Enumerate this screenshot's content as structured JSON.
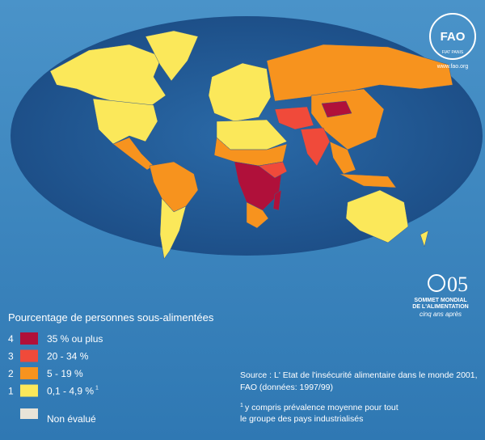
{
  "header": {
    "logo_text": "FAO",
    "logo_motto": "FIAT PANIS",
    "website": "www.fao.org"
  },
  "summit": {
    "number": "05",
    "line1": "SOMMET MONDIAL",
    "line2": "DE L'ALIMENTATION",
    "tagline": "cinq ans après"
  },
  "legend": {
    "title": "Pourcentage de personnes sous-alimentées",
    "items": [
      {
        "number": "4",
        "label": "35 %  ou plus",
        "color": "#b0103a"
      },
      {
        "number": "3",
        "label": "20 - 34 %",
        "color": "#f04a3a"
      },
      {
        "number": "2",
        "label": "5 - 19 %",
        "color": "#f7931e"
      },
      {
        "number": "1",
        "label": "0,1 - 4,9 %",
        "note": "1",
        "color": "#fbe85a"
      }
    ],
    "not_evaluated": {
      "label": "Non  évalué",
      "color": "#e8e4d8"
    }
  },
  "source": {
    "lines": [
      "Source : L' Etat de l'insécurité alimentaire dans le monde 2001,",
      "FAO (données: 1997/99)"
    ]
  },
  "footnote": {
    "mark": "1",
    "lines": [
      "y compris  prévalence moyenne pour tout",
      "le groupe des pays industrialisés"
    ]
  }
}
